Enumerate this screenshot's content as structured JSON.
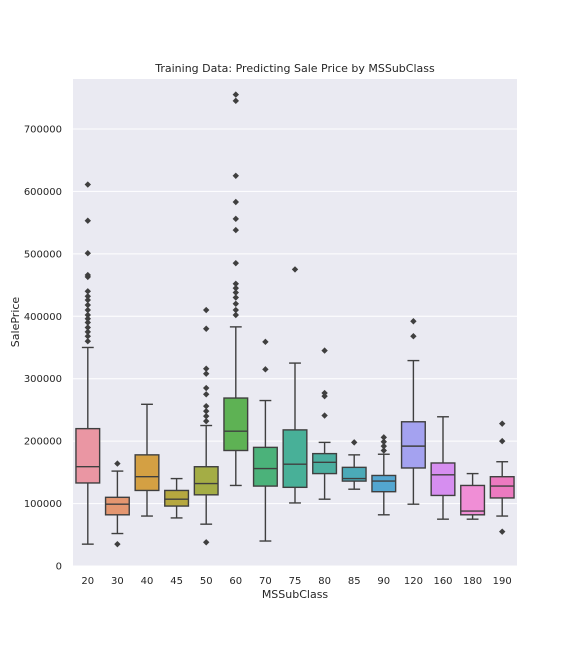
{
  "chart_data": {
    "type": "box",
    "title": "Training Data: Predicting Sale Price by MSSubClass",
    "xlabel": "MSSubClass",
    "ylabel": "SalePrice",
    "ylim": [
      0,
      780000
    ],
    "yticks": [
      0,
      100000,
      200000,
      300000,
      400000,
      500000,
      600000,
      700000
    ],
    "ytick_labels": [
      "0",
      "100000",
      "200000",
      "300000",
      "400000",
      "500000",
      "600000",
      "700000"
    ],
    "grid": "horizontal",
    "background": "#eaeaf2",
    "categories": [
      "20",
      "30",
      "40",
      "45",
      "50",
      "60",
      "70",
      "75",
      "80",
      "85",
      "90",
      "120",
      "160",
      "180",
      "190"
    ],
    "colors": [
      "#ea96a3",
      "#e49670",
      "#d4a043",
      "#b6a83f",
      "#a4ad45",
      "#5eb254",
      "#4bb27a",
      "#48b098",
      "#4bae9f",
      "#4baab8",
      "#53a6d0",
      "#a4a2f0",
      "#d68ef0",
      "#f08ed6",
      "#ec7ac0"
    ],
    "boxes": [
      {
        "category": "20",
        "whislo": 35000,
        "q1": 133000,
        "med": 159000,
        "q3": 220000,
        "whishi": 350000,
        "fliers": [
          360000,
          368000,
          375000,
          382000,
          390000,
          396000,
          402000,
          410000,
          418000,
          426000,
          432000,
          440000,
          463000,
          466000,
          501000,
          553000,
          611000
        ]
      },
      {
        "category": "30",
        "whislo": 52000,
        "q1": 82000,
        "med": 99000,
        "q3": 110000,
        "whishi": 152000,
        "fliers": [
          35000,
          164000
        ]
      },
      {
        "category": "40",
        "whislo": 80000,
        "q1": 121000,
        "med": 143000,
        "q3": 178000,
        "whishi": 259000,
        "fliers": []
      },
      {
        "category": "45",
        "whislo": 77000,
        "q1": 96000,
        "med": 107000,
        "q3": 121000,
        "whishi": 140000,
        "fliers": []
      },
      {
        "category": "50",
        "whislo": 67000,
        "q1": 114000,
        "med": 132000,
        "q3": 159000,
        "whishi": 225000,
        "fliers": [
          38000,
          232000,
          240000,
          248000,
          256000,
          275000,
          285000,
          308000,
          316000,
          380000,
          410000
        ]
      },
      {
        "category": "60",
        "whislo": 129000,
        "q1": 185000,
        "med": 216000,
        "q3": 269000,
        "whishi": 383000,
        "fliers": [
          402000,
          410000,
          420000,
          430000,
          438000,
          445000,
          452000,
          485000,
          538000,
          556000,
          583000,
          625000,
          745000,
          755000
        ]
      },
      {
        "category": "70",
        "whislo": 40000,
        "q1": 128000,
        "med": 156000,
        "q3": 190000,
        "whishi": 265000,
        "fliers": [
          315000,
          359000
        ]
      },
      {
        "category": "75",
        "whislo": 101000,
        "q1": 126000,
        "med": 163000,
        "q3": 218000,
        "whishi": 325000,
        "fliers": [
          475000
        ]
      },
      {
        "category": "80",
        "whislo": 107000,
        "q1": 148000,
        "med": 166000,
        "q3": 180000,
        "whishi": 198000,
        "fliers": [
          241000,
          272000,
          277000,
          345000
        ]
      },
      {
        "category": "85",
        "whislo": 123000,
        "q1": 136000,
        "med": 140000,
        "q3": 158000,
        "whishi": 178000,
        "fliers": [
          198000
        ]
      },
      {
        "category": "90",
        "whislo": 82000,
        "q1": 119000,
        "med": 136000,
        "q3": 145000,
        "whishi": 179000,
        "fliers": [
          185000,
          192000,
          199000,
          206000
        ]
      },
      {
        "category": "120",
        "whislo": 99000,
        "q1": 157000,
        "med": 192000,
        "q3": 231000,
        "whishi": 329000,
        "fliers": [
          368000,
          392000
        ]
      },
      {
        "category": "160",
        "whislo": 75000,
        "q1": 113000,
        "med": 146000,
        "q3": 165000,
        "whishi": 239000,
        "fliers": []
      },
      {
        "category": "180",
        "whislo": 75000,
        "q1": 82000,
        "med": 88000,
        "q3": 129000,
        "whishi": 148000,
        "fliers": []
      },
      {
        "category": "190",
        "whislo": 80000,
        "q1": 109000,
        "med": 128000,
        "q3": 143000,
        "whishi": 167000,
        "fliers": [
          55000,
          200000,
          228000
        ]
      }
    ]
  }
}
